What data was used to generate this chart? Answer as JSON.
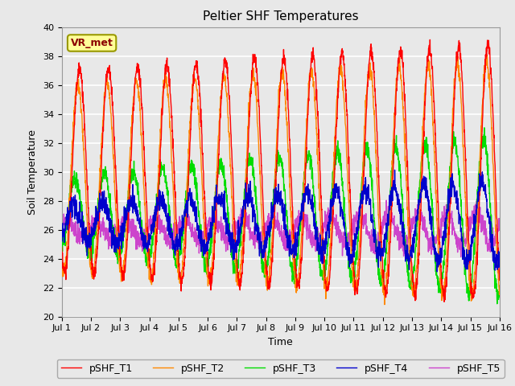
{
  "title": "Peltier SHF Temperatures",
  "ylabel": "Soil Temperature",
  "xlabel": "Time",
  "xlim": [
    0,
    15
  ],
  "ylim": [
    20,
    40
  ],
  "yticks": [
    20,
    22,
    24,
    26,
    28,
    30,
    32,
    34,
    36,
    38,
    40
  ],
  "xtick_labels": [
    "Jul 1",
    "Jul 2",
    "Jul 3",
    "Jul 4",
    "Jul 5",
    "Jul 6",
    "Jul 7",
    "Jul 8",
    "Jul 9",
    "Jul 10",
    "Jul 11",
    "Jul 12",
    "Jul 13",
    "Jul 14",
    "Jul 15",
    "Jul 16"
  ],
  "annotation_text": "VR_met",
  "series_colors": {
    "pSHF_T1": "#ff0000",
    "pSHF_T2": "#ff8800",
    "pSHF_T3": "#00dd00",
    "pSHF_T4": "#0000cc",
    "pSHF_T5": "#cc44cc"
  },
  "background_color": "#e8e8e8",
  "axes_background": "#e8e8e8",
  "grid_color": "#ffffff"
}
